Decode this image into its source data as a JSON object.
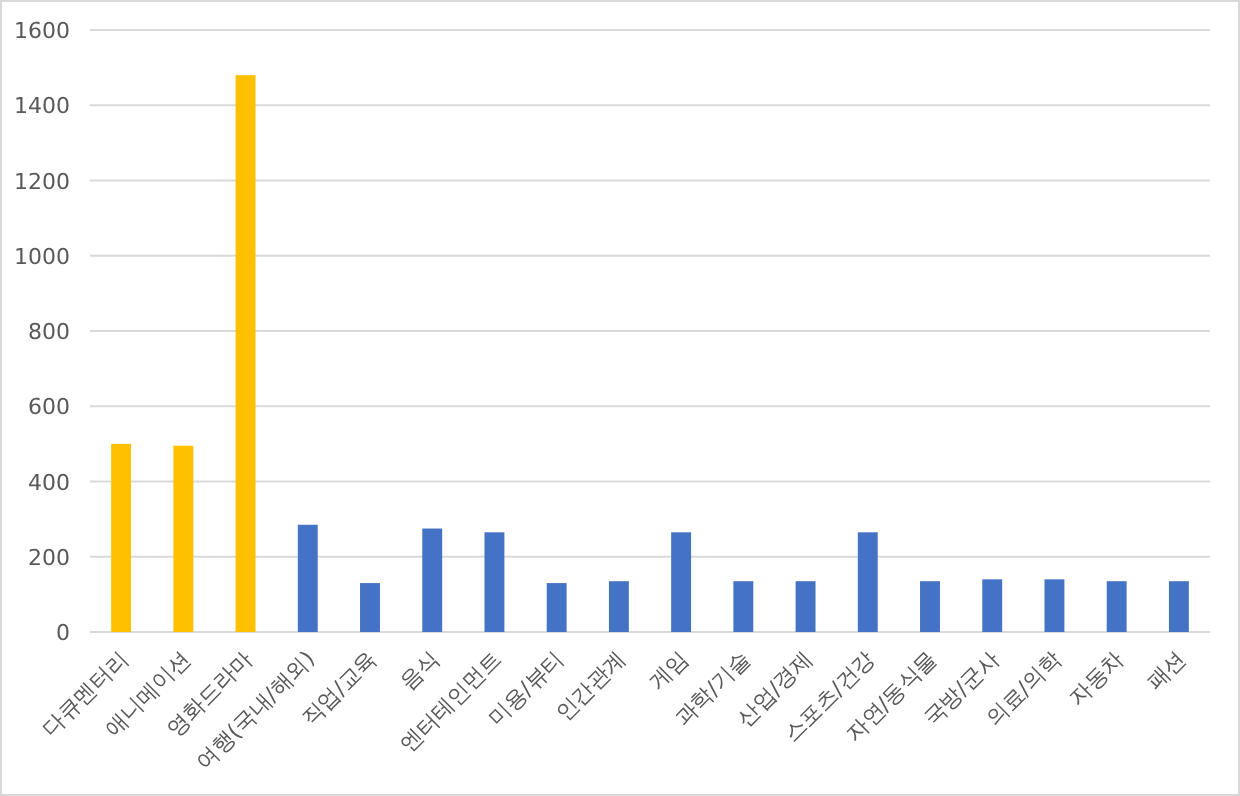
{
  "chart_data": {
    "type": "bar",
    "categories": [
      "다큐멘터리",
      "애니메이션",
      "영화드라마",
      "여행(국내/해외)",
      "직업/교육",
      "음식",
      "엔터테인먼트",
      "미용/뷰티",
      "인간관계",
      "게임",
      "과학/기술",
      "산업/경제",
      "스포츠/건강",
      "자연/동식물",
      "국방/군사",
      "의료/의학",
      "자동차",
      "패션"
    ],
    "values": [
      500,
      495,
      1480,
      285,
      130,
      275,
      265,
      130,
      135,
      265,
      135,
      135,
      265,
      135,
      140,
      140,
      135,
      135
    ],
    "colors": [
      "#ffc000",
      "#ffc000",
      "#ffc000",
      "#4472c4",
      "#4472c4",
      "#4472c4",
      "#4472c4",
      "#4472c4",
      "#4472c4",
      "#4472c4",
      "#4472c4",
      "#4472c4",
      "#4472c4",
      "#4472c4",
      "#4472c4",
      "#4472c4",
      "#4472c4",
      "#4472c4"
    ],
    "ylim": [
      0,
      1600
    ],
    "yticks": [
      0,
      200,
      400,
      600,
      800,
      1000,
      1200,
      1400,
      1600
    ],
    "grid": "y"
  }
}
